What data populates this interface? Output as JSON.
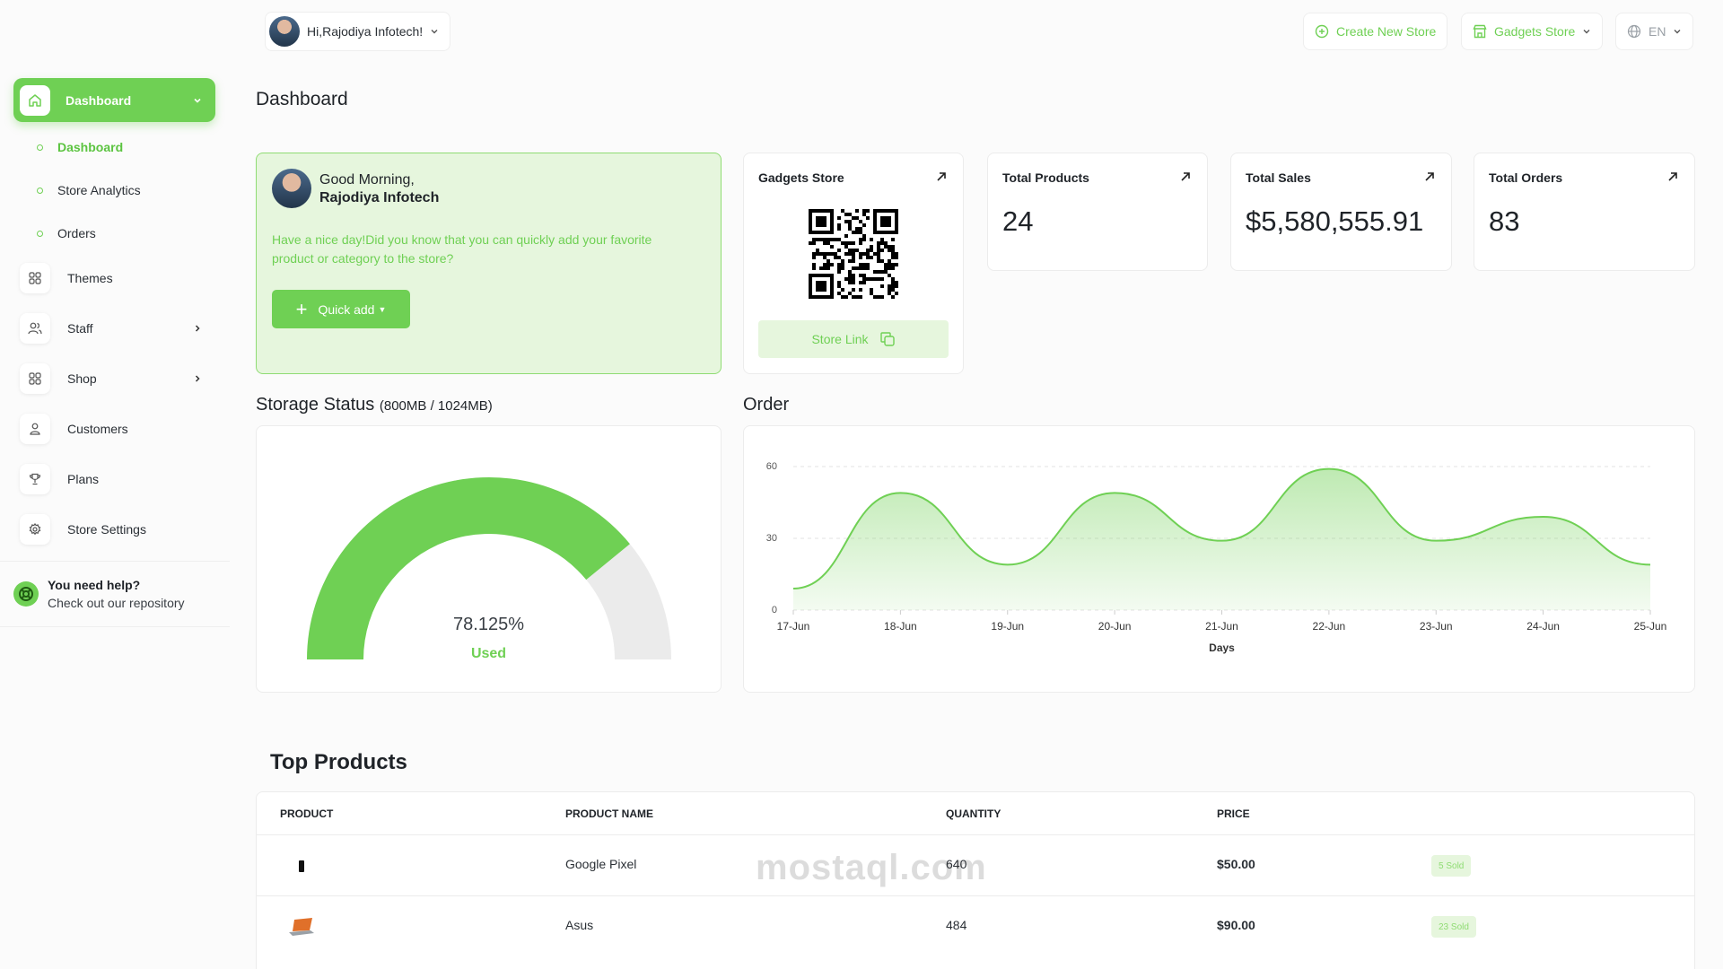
{
  "header": {
    "greeting": "Hi,Rajodiya Infotech!",
    "create_store": "Create New Store",
    "store_select": "Gadgets Store",
    "language": "EN"
  },
  "sidebar": {
    "main": "Dashboard",
    "sub_items": [
      {
        "label": "Dashboard"
      },
      {
        "label": "Store Analytics"
      },
      {
        "label": "Orders"
      }
    ],
    "items": [
      {
        "label": "Themes",
        "icon": "grid-icon"
      },
      {
        "label": "Staff",
        "icon": "users-icon"
      },
      {
        "label": "Shop",
        "icon": "grid-icon"
      },
      {
        "label": "Customers",
        "icon": "user-icon"
      },
      {
        "label": "Plans",
        "icon": "trophy-icon"
      },
      {
        "label": "Store Settings",
        "icon": "gear-icon"
      }
    ],
    "help_title": "You need help?",
    "help_text": "Check out our repository"
  },
  "page_title": "Dashboard",
  "welcome": {
    "line1": "Good Morning,",
    "line2": "Rajodiya Infotech",
    "message": "Have a nice day!Did you know that you can quickly add your favorite product or category to the store?",
    "quick_add": "Quick add"
  },
  "stats": {
    "store": {
      "title": "Gadgets Store",
      "link_label": "Store Link"
    },
    "products": {
      "title": "Total Products",
      "value": "24"
    },
    "sales": {
      "title": "Total Sales",
      "value": "$5,580,555.91"
    },
    "orders": {
      "title": "Total Orders",
      "value": "83"
    }
  },
  "storage": {
    "title": "Storage Status",
    "subtitle": "(800MB / 1024MB)",
    "percent_label": "78.125%",
    "used_label": "Used",
    "fraction": 0.78125
  },
  "order_chart_title": "Order",
  "chart_data": {
    "type": "area",
    "title": "",
    "x": [
      "17-Jun",
      "18-Jun",
      "19-Jun",
      "20-Jun",
      "21-Jun",
      "22-Jun",
      "23-Jun",
      "24-Jun",
      "25-Jun"
    ],
    "series": [
      {
        "values": [
          9,
          49,
          19,
          49,
          29,
          59,
          29,
          39,
          19
        ]
      }
    ],
    "xlabel": "Days",
    "ylabel": "",
    "ylim": [
      0,
      60
    ],
    "yticks": [
      "0",
      "30",
      "60"
    ],
    "grid": true,
    "color": "#6fd054"
  },
  "top_products": {
    "title": "Top Products",
    "headers": [
      "PRODUCT",
      "PRODUCT NAME",
      "QUANTITY",
      "PRICE"
    ],
    "rows": [
      {
        "name": "Google Pixel",
        "quantity": "640",
        "price": "$50.00",
        "sold": "5 Sold"
      },
      {
        "name": "Asus",
        "quantity": "484",
        "price": "$90.00",
        "sold": "23 Sold"
      }
    ]
  },
  "watermark": "mostaql.com",
  "colors": {
    "accent": "#6fd054",
    "accent_light": "#e6f6dd",
    "gauge_rest": "#ebebeb"
  }
}
